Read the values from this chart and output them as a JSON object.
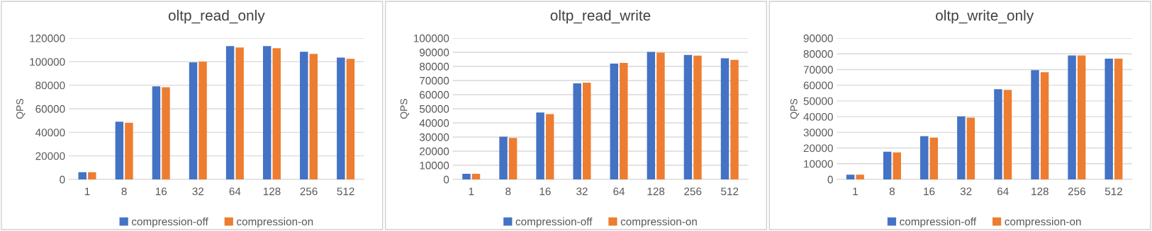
{
  "chart_data": [
    {
      "type": "bar",
      "title": "oltp_read_only",
      "ylabel": "QPS",
      "categories": [
        "1",
        "8",
        "16",
        "32",
        "64",
        "128",
        "256",
        "512"
      ],
      "series": [
        {
          "name": "compression-off",
          "color": "#4472c4",
          "values": [
            6200,
            49000,
            79000,
            99400,
            113200,
            113200,
            108500,
            103500
          ]
        },
        {
          "name": "compression-on",
          "color": "#ed7d31",
          "values": [
            6200,
            48200,
            78300,
            100000,
            112000,
            111400,
            106600,
            102500
          ]
        }
      ],
      "ylim": [
        0,
        120000
      ],
      "yticks": [
        0,
        20000,
        40000,
        60000,
        80000,
        100000,
        120000
      ],
      "grid": "y",
      "legend": "bottom"
    },
    {
      "type": "bar",
      "title": "oltp_read_write",
      "ylabel": "QPS",
      "categories": [
        "1",
        "8",
        "16",
        "32",
        "64",
        "128",
        "256",
        "512"
      ],
      "series": [
        {
          "name": "compression-off",
          "color": "#4472c4",
          "values": [
            4000,
            30200,
            47400,
            68000,
            82000,
            90200,
            88100,
            85700
          ]
        },
        {
          "name": "compression-on",
          "color": "#ed7d31",
          "values": [
            4000,
            29400,
            46300,
            68500,
            82500,
            89700,
            87600,
            84600
          ]
        }
      ],
      "ylim": [
        0,
        100000
      ],
      "yticks": [
        0,
        10000,
        20000,
        30000,
        40000,
        50000,
        60000,
        70000,
        80000,
        90000,
        100000
      ],
      "grid": "y",
      "legend": "bottom"
    },
    {
      "type": "bar",
      "title": "oltp_write_only",
      "ylabel": "QPS",
      "categories": [
        "1",
        "8",
        "16",
        "32",
        "64",
        "128",
        "256",
        "512"
      ],
      "series": [
        {
          "name": "compression-off",
          "color": "#4472c4",
          "values": [
            3000,
            17700,
            27600,
            40200,
            57500,
            69600,
            79000,
            76900
          ]
        },
        {
          "name": "compression-on",
          "color": "#ed7d31",
          "values": [
            3000,
            17200,
            26700,
            39400,
            57000,
            68300,
            79000,
            76900
          ]
        }
      ],
      "ylim": [
        0,
        90000
      ],
      "yticks": [
        0,
        10000,
        20000,
        30000,
        40000,
        50000,
        60000,
        70000,
        80000,
        90000
      ],
      "grid": "y",
      "legend": "bottom"
    }
  ]
}
